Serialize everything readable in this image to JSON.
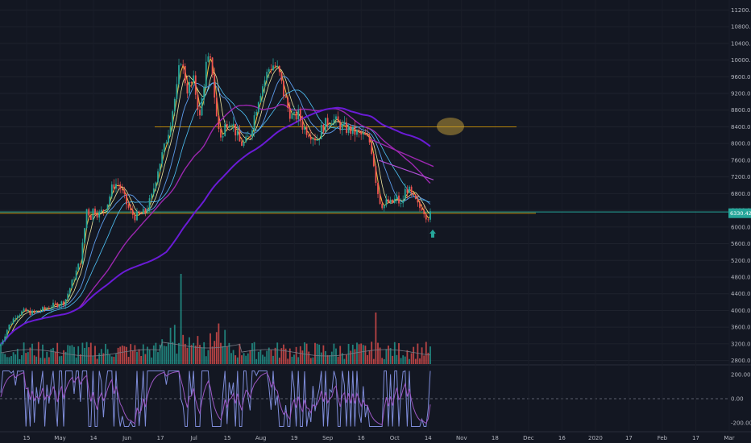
{
  "chart_data": {
    "type": "candlestick",
    "main_panel": {
      "y_axis": {
        "range": [
          2600,
          11400
        ],
        "ticks": [
          "11200.00",
          "10800.00",
          "10400.00",
          "10000.00",
          "9600.00",
          "9200.00",
          "8800.00",
          "8400.00",
          "8000.00",
          "7600.00",
          "7200.00",
          "6800.00",
          "6400.00",
          "6000.00",
          "5600.00",
          "5200.00",
          "4800.00",
          "4400.00",
          "4000.00",
          "3600.00",
          "3200.00",
          "2800.00"
        ]
      },
      "last_price_label": "6330.42",
      "last_price": 6330,
      "price_series": [
        [
          0,
          3150
        ],
        [
          10,
          3600
        ],
        [
          20,
          3900
        ],
        [
          30,
          3980
        ],
        [
          40,
          3940
        ],
        [
          50,
          4000
        ],
        [
          60,
          4070
        ],
        [
          70,
          4150
        ],
        [
          80,
          4200
        ],
        [
          90,
          4700
        ],
        [
          100,
          5200
        ],
        [
          104,
          5800
        ],
        [
          108,
          6500
        ],
        [
          112,
          6200
        ],
        [
          116,
          6450
        ],
        [
          122,
          6300
        ],
        [
          128,
          6400
        ],
        [
          134,
          6600
        ],
        [
          140,
          7000
        ],
        [
          146,
          7050
        ],
        [
          150,
          6900
        ],
        [
          156,
          6600
        ],
        [
          162,
          6350
        ],
        [
          168,
          6250
        ],
        [
          174,
          6300
        ],
        [
          180,
          6350
        ],
        [
          188,
          6700
        ],
        [
          196,
          7400
        ],
        [
          204,
          7900
        ],
        [
          210,
          8400
        ],
        [
          216,
          9000
        ],
        [
          220,
          9350
        ],
        [
          224,
          10100
        ],
        [
          228,
          9700
        ],
        [
          232,
          9300
        ],
        [
          236,
          9400
        ],
        [
          240,
          9500
        ],
        [
          244,
          9100
        ],
        [
          248,
          8600
        ],
        [
          252,
          9300
        ],
        [
          256,
          9900
        ],
        [
          260,
          10000
        ],
        [
          264,
          9700
        ],
        [
          268,
          8700
        ],
        [
          272,
          8300
        ],
        [
          276,
          8100
        ],
        [
          280,
          8500
        ],
        [
          286,
          8600
        ],
        [
          292,
          8300
        ],
        [
          298,
          8000
        ],
        [
          304,
          8000
        ],
        [
          310,
          8200
        ],
        [
          316,
          8700
        ],
        [
          322,
          9200
        ],
        [
          328,
          9500
        ],
        [
          334,
          9800
        ],
        [
          340,
          9900
        ],
        [
          346,
          9700
        ],
        [
          352,
          9200
        ],
        [
          358,
          8800
        ],
        [
          364,
          8600
        ],
        [
          370,
          8700
        ],
        [
          376,
          8400
        ],
        [
          382,
          8300
        ],
        [
          388,
          8200
        ],
        [
          394,
          8100
        ],
        [
          400,
          8400
        ],
        [
          406,
          8500
        ],
        [
          412,
          8600
        ],
        [
          418,
          8500
        ],
        [
          424,
          8400
        ],
        [
          430,
          8350
        ],
        [
          436,
          8300
        ],
        [
          442,
          8250
        ],
        [
          448,
          8200
        ],
        [
          454,
          8150
        ],
        [
          460,
          8000
        ],
        [
          464,
          7500
        ],
        [
          468,
          6900
        ],
        [
          472,
          6600
        ],
        [
          476,
          6500
        ],
        [
          480,
          6600
        ],
        [
          486,
          6550
        ],
        [
          492,
          6700
        ],
        [
          498,
          6500
        ],
        [
          504,
          6950
        ],
        [
          508,
          6850
        ],
        [
          512,
          6700
        ],
        [
          516,
          6600
        ],
        [
          520,
          6450
        ],
        [
          524,
          6500
        ],
        [
          528,
          6300
        ],
        [
          532,
          6250
        ],
        [
          536,
          6330
        ]
      ],
      "horizontal_lines": [
        {
          "price": 8400,
          "color": "#b8860b"
        },
        {
          "price": 6330,
          "color": "#b8860b"
        },
        {
          "price": 6360,
          "color": "#26a69a"
        }
      ],
      "up_color": "#26a69a",
      "down_color": "#ef5350"
    },
    "volume": {
      "up_color": "#26a69a",
      "down_color": "#ef5350"
    },
    "oscillator": {
      "y_axis": {
        "range": [
          -260,
          260
        ],
        "ticks": [
          "200.00",
          "0.00",
          "-200.00"
        ]
      },
      "zero_line": 0
    },
    "x_axis": {
      "ticks": [
        "15",
        "May",
        "14",
        "Jun",
        "17",
        "Jul",
        "15",
        "Aug",
        "19",
        "Sep",
        "16",
        "Oct",
        "14",
        "Nov",
        "18",
        "Dec",
        "16",
        "2020",
        "17",
        "Feb",
        "17",
        "Mar"
      ]
    },
    "annotations": [
      {
        "type": "ellipse",
        "color": "#c8a23a"
      },
      {
        "type": "arrow-up",
        "color": "#26a69a"
      }
    ]
  }
}
